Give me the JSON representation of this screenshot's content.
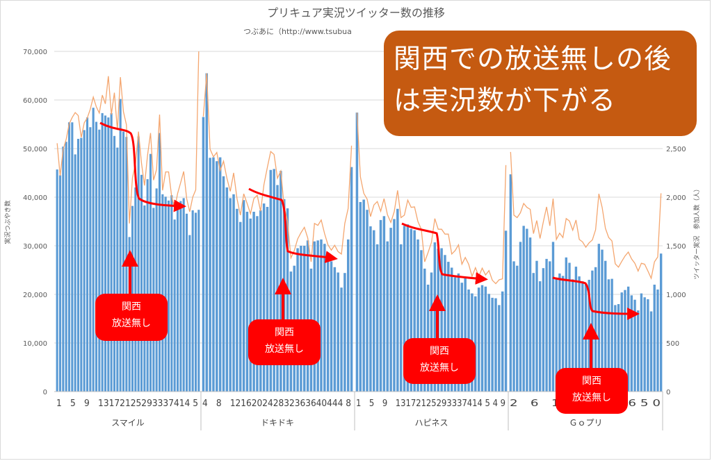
{
  "chart_data": {
    "type": "bar",
    "title": "プリキュア実況ツイッター数の推移",
    "subtitle": "つぶあに（http://www.tsubua",
    "ylabel_left": "実況つぶやき数",
    "ylabel_right": "ツイッター実況　参加人数（人）",
    "ylim_left": [
      0,
      70000
    ],
    "ylim_right": [
      0,
      3500
    ],
    "y_ticks_left": [
      "0",
      "10,000",
      "20,000",
      "30,000",
      "40,000",
      "50,000",
      "60,000",
      "70,000"
    ],
    "y_ticks_right": [
      "0",
      "500",
      "1,000",
      "1,500",
      "2,000",
      "2,500",
      "3,000",
      "3,500"
    ],
    "bar_color": "#5b9bd5",
    "line_color": "#f4a66f",
    "groups": [
      {
        "name": "スマイル",
        "tick_labels": "1　5　9　13172125293337414 5",
        "bars": [
          45700,
          44500,
          50400,
          51400,
          55400,
          55400,
          48800,
          52000,
          52200,
          53800,
          56400,
          54400,
          58400,
          55500,
          53900,
          57300,
          56800,
          56400,
          57300,
          52600,
          50200,
          60200,
          53500,
          52400,
          31800,
          38200,
          42000,
          52500,
          44600,
          38300,
          43700,
          48900,
          37800,
          41800,
          53200,
          40600,
          40100,
          39300,
          40400,
          35400,
          37600,
          39200,
          39800,
          36600,
          32200,
          37300,
          36800,
          37400
        ],
        "line": [
          2555,
          2220,
          2490,
          2595,
          2755,
          2820,
          2870,
          2840,
          2615,
          2765,
          2815,
          2905,
          3030,
          2930,
          2865,
          3050,
          2960,
          3245,
          2850,
          3075,
          2690,
          3235,
          2880,
          2745,
          1730,
          2200,
          2340,
          2675,
          2350,
          2120,
          2430,
          2660,
          2175,
          2285,
          2850,
          2070,
          2260,
          2260,
          2010,
          1880,
          2040,
          2150,
          2265,
          1985,
          1850,
          2000,
          2075,
          3700
        ]
      },
      {
        "name": "ドキドキ",
        "tick_labels": "4　8　121620242832363640444 8",
        "bars": [
          56500,
          65500,
          48100,
          48200,
          47400,
          48200,
          44300,
          42000,
          39800,
          40600,
          37600,
          34900,
          39400,
          37000,
          35600,
          37000,
          36100,
          37300,
          38700,
          38000,
          45600,
          45800,
          42500,
          45400,
          39600,
          37700,
          24700,
          25900,
          29500,
          30000,
          30000,
          31100,
          25300,
          30900,
          31100,
          31300,
          30400,
          27900,
          26800,
          25600,
          24500,
          21400,
          24400,
          31300,
          46200
        ],
        "line": [
          2830,
          3275,
          2495,
          2415,
          2460,
          2275,
          2370,
          2195,
          2060,
          2250,
          1985,
          1815,
          2035,
          1935,
          1830,
          1985,
          2020,
          1855,
          2130,
          2305,
          2470,
          2440,
          2195,
          2270,
          1900,
          1755,
          1375,
          1450,
          1570,
          1635,
          1690,
          1580,
          1335,
          1730,
          1710,
          1765,
          1625,
          1510,
          1455,
          1505,
          1440,
          1415,
          1730,
          1885,
          2530
        ]
      },
      {
        "name": "ハピネス",
        "tick_labels": "1　5　9　13172125293337414 5 4 9",
        "bars": [
          57400,
          39000,
          39500,
          37400,
          34000,
          33200,
          30300,
          35300,
          36100,
          30900,
          33700,
          35500,
          37600,
          30300,
          34100,
          34400,
          33500,
          33200,
          31300,
          29100,
          25300,
          22000,
          24500,
          30700,
          29400,
          29500,
          28100,
          26700,
          25500,
          23500,
          24300,
          22400,
          23300,
          21000,
          20200,
          19600,
          21400,
          21900,
          21600,
          20100,
          19300,
          19200,
          17800,
          20600,
          33100
        ],
        "line": [
          2870,
          2210,
          2040,
          1980,
          1800,
          1920,
          1955,
          1855,
          1985,
          1820,
          1740,
          1850,
          2070,
          1790,
          1815,
          1970,
          1895,
          1900,
          1750,
          1670,
          1335,
          1430,
          1535,
          1780,
          1670,
          1670,
          1620,
          1620,
          1415,
          1450,
          1510,
          1310,
          1380,
          1310,
          1185,
          1275,
          1185,
          1270,
          1200,
          1245,
          1145,
          1110,
          1150,
          1160,
          2330
        ]
      },
      {
        "name": "Ｇｏプリ",
        "tick_labels": "2　6　1014 ... 4246 5 0",
        "bars": [
          44700,
          26800,
          25900,
          30800,
          34100,
          33500,
          31700,
          24400,
          26900,
          22700,
          25400,
          27300,
          26800,
          30800,
          23400,
          24300,
          23800,
          27600,
          26500,
          23100,
          25700,
          23700,
          22700,
          22100,
          23000,
          24900,
          25600,
          30400,
          29200,
          26900,
          23100,
          23200,
          17800,
          18000,
          20400,
          20900,
          21600,
          19800,
          18900,
          16700,
          20200,
          19400,
          19000,
          16500,
          22000,
          21000,
          28400
        ],
        "line": [
          2465,
          1815,
          1790,
          1840,
          1935,
          1895,
          1875,
          1625,
          1760,
          1575,
          1745,
          1900,
          1705,
          1985,
          1565,
          1630,
          1585,
          1780,
          1755,
          1660,
          1765,
          1565,
          1540,
          1485,
          1530,
          1560,
          1665,
          2035,
          1895,
          1680,
          1585,
          1550,
          1315,
          1280,
          1340,
          1395,
          1435,
          1365,
          1320,
          1240,
          1320,
          1310,
          1240,
          1165,
          1335,
          1385,
          2040
        ]
      }
    ],
    "annotations": {
      "red_trend_lines": true,
      "red_arrows": true
    }
  },
  "callouts": {
    "main_line1": "関西での放送無しの後",
    "main_line2": "は実況数が下がる",
    "small": [
      {
        "line1": "関西",
        "line2": "放送無し"
      },
      {
        "line1": "関西",
        "line2": "放送無し"
      },
      {
        "line1": "関西",
        "line2": "放送無し"
      },
      {
        "line1": "関西",
        "line2": "放送無し"
      }
    ]
  },
  "colors": {
    "callout_main": "#c55a11",
    "callout_small": "#ff0000",
    "arrow": "#ff0000"
  }
}
